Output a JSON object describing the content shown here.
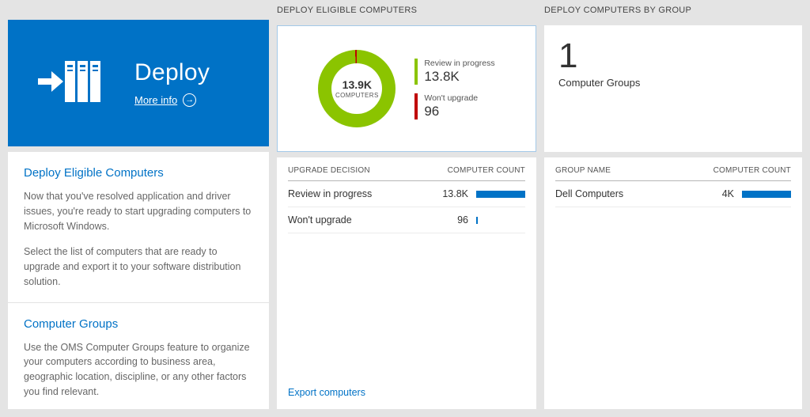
{
  "colors": {
    "accent_blue": "#0072c6",
    "chart_green": "#8bc400",
    "chart_red": "#c00000",
    "bar_blue": "#0072c6"
  },
  "chart_data": {
    "type": "pie",
    "title": "Deploy Eligible Computers",
    "center_value": "13.9K",
    "center_label": "COMPUTERS",
    "legend_position": "right",
    "slices": [
      {
        "label": "Review in progress",
        "value": 13800,
        "display": "13.8K",
        "color": "#8bc400"
      },
      {
        "label": "Won't upgrade",
        "value": 96,
        "display": "96",
        "color": "#c00000"
      }
    ]
  },
  "left": {
    "tile": {
      "title": "Deploy",
      "more_info_label": "More info",
      "arrow_glyph": "→"
    },
    "sections": [
      {
        "heading": "Deploy Eligible Computers",
        "paragraphs": [
          "Now that you've resolved application and driver issues, you're ready to start upgrading computers to Microsoft Windows.",
          "Select the list of computers that are ready to upgrade and export it to your software distribution solution."
        ]
      },
      {
        "heading": "Computer Groups",
        "paragraphs": [
          "Use the OMS Computer Groups feature to organize your computers according to business area, geographic location, discipline, or any other factors you find relevant."
        ]
      }
    ]
  },
  "middle": {
    "header": "DEPLOY ELIGIBLE COMPUTERS",
    "table": {
      "headers": [
        "UPGRADE DECISION",
        "COMPUTER COUNT"
      ],
      "rows": [
        {
          "label": "Review in progress",
          "display": "13.8K",
          "value": 13800,
          "bar_pct": 100
        },
        {
          "label": "Won't upgrade",
          "display": "96",
          "value": 96,
          "bar_pct": 2
        }
      ]
    },
    "export_link": "Export computers"
  },
  "right": {
    "header": "DEPLOY COMPUTERS BY GROUP",
    "count": "1",
    "count_label": "Computer Groups",
    "table": {
      "headers": [
        "GROUP NAME",
        "COMPUTER COUNT"
      ],
      "rows": [
        {
          "label": "Dell Computers",
          "display": "4K",
          "value": 4000,
          "bar_pct": 100
        }
      ]
    }
  }
}
